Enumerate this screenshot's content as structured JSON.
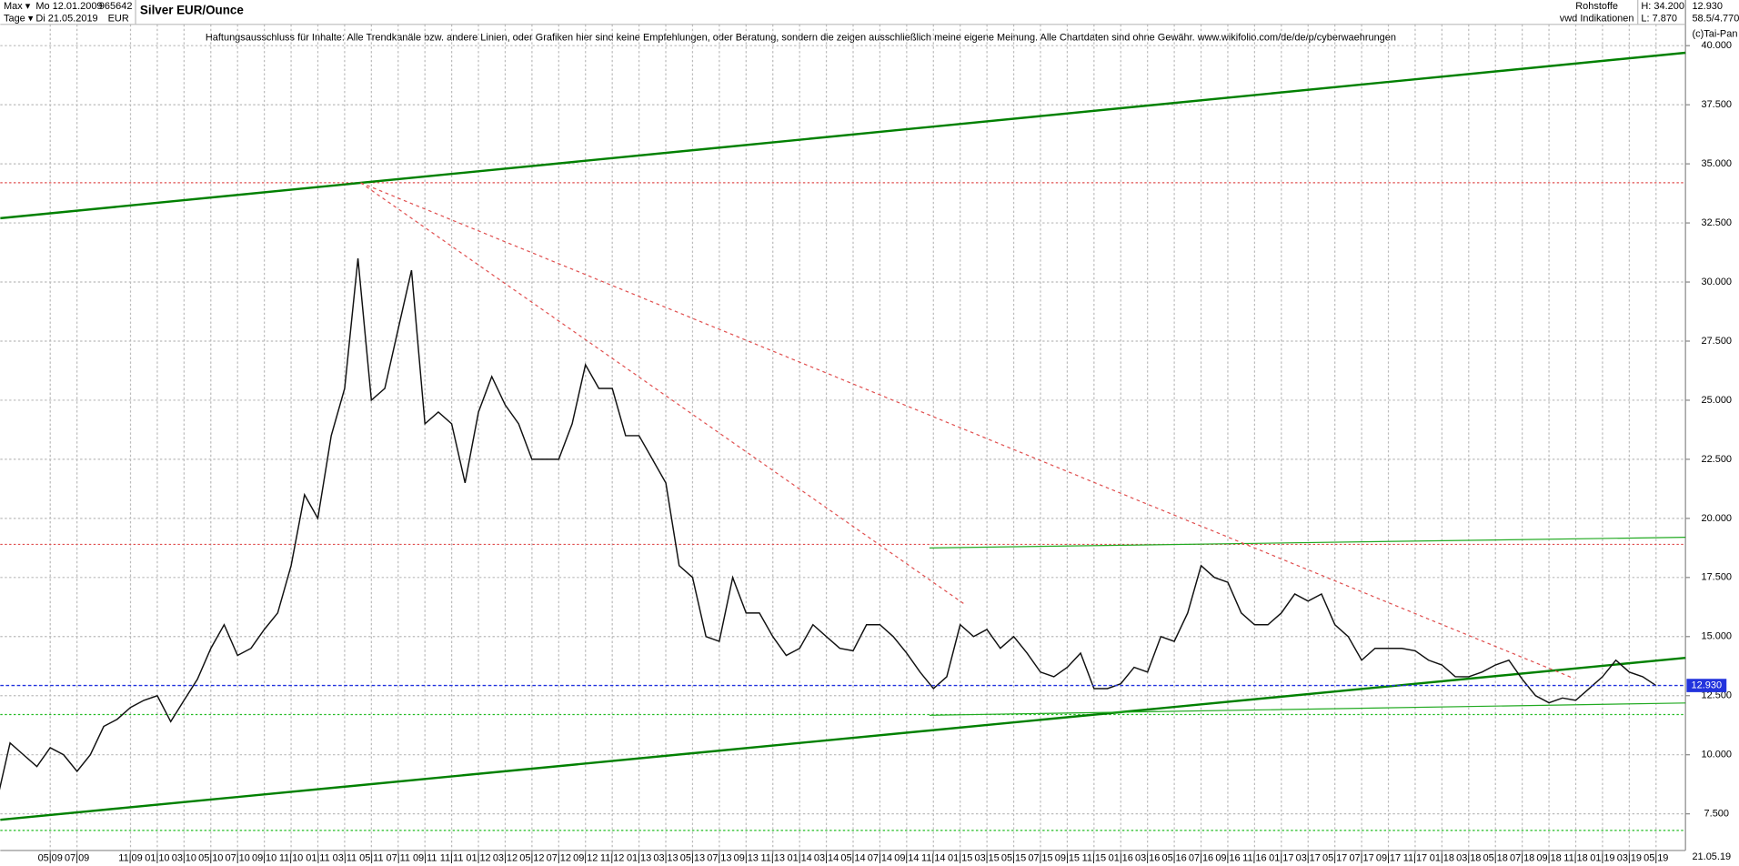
{
  "header": {
    "range": "Max ▾",
    "start": "Mo 12.01.2009",
    "code": "965642",
    "unit": "Tage ▾",
    "end": "Di 21.05.2019",
    "currency": "EUR",
    "group": "Rohstoffe",
    "source": "vwd Indikationen",
    "high": "H: 34.200",
    "low": "L: 7.870",
    "last": "12.930",
    "stats": "58.5/4.770",
    "copyright": "(c)Tai-Pan",
    "disclaimer": "Haftungsausschluss für Inhalte: Alle Trendkanäle bzw. andere Linien, oder Grafiken hier sind keine Empfehlungen, oder Beratung, sondern die zeigen ausschließlich meine eigene Meinung. Alle Chartdaten sind ohne Gewähr.  www.wikifolio.com/de/de/p/cyberwaehrungen",
    "end_date": "21.05.19"
  },
  "chart_data": {
    "type": "line",
    "title": "Silver EUR/Ounce",
    "grid": true,
    "xlim": [
      0.27,
      126.2
    ],
    "ylim": [
      5.95,
      40.9
    ],
    "yticks": [
      {
        "value": 7.5,
        "label": "7.500"
      },
      {
        "value": 10,
        "label": "10.000"
      },
      {
        "value": 12.5,
        "label": "12.500"
      },
      {
        "value": 15,
        "label": "15.000"
      },
      {
        "value": 17.5,
        "label": "17.500"
      },
      {
        "value": 20,
        "label": "20.000"
      },
      {
        "value": 22.5,
        "label": "22.500"
      },
      {
        "value": 25,
        "label": "25.000"
      },
      {
        "value": 27.5,
        "label": "27.500"
      },
      {
        "value": 30,
        "label": "30.000"
      },
      {
        "value": 32.5,
        "label": "32.500"
      },
      {
        "value": 35,
        "label": "35.000"
      },
      {
        "value": 37.5,
        "label": "37.500"
      },
      {
        "value": 40,
        "label": "40.000"
      }
    ],
    "xticks": [
      {
        "value": 4,
        "label": "05|09"
      },
      {
        "value": 6,
        "label": "07|09"
      },
      {
        "value": 10,
        "label": "11|09"
      },
      {
        "value": 12,
        "label": "01|10"
      },
      {
        "value": 14,
        "label": "03|10"
      },
      {
        "value": 16,
        "label": "05|10"
      },
      {
        "value": 18,
        "label": "07|10"
      },
      {
        "value": 20,
        "label": "09|10"
      },
      {
        "value": 22,
        "label": "11|10"
      },
      {
        "value": 24,
        "label": "01|11"
      },
      {
        "value": 26,
        "label": "03|11"
      },
      {
        "value": 28,
        "label": "05|11"
      },
      {
        "value": 30,
        "label": "07|11"
      },
      {
        "value": 32,
        "label": "09|11"
      },
      {
        "value": 34,
        "label": "11|11"
      },
      {
        "value": 36,
        "label": "01|12"
      },
      {
        "value": 38,
        "label": "03|12"
      },
      {
        "value": 40,
        "label": "05|12"
      },
      {
        "value": 42,
        "label": "07|12"
      },
      {
        "value": 44,
        "label": "09|12"
      },
      {
        "value": 46,
        "label": "11|12"
      },
      {
        "value": 48,
        "label": "01|13"
      },
      {
        "value": 50,
        "label": "03|13"
      },
      {
        "value": 52,
        "label": "05|13"
      },
      {
        "value": 54,
        "label": "07|13"
      },
      {
        "value": 56,
        "label": "09|13"
      },
      {
        "value": 58,
        "label": "11|13"
      },
      {
        "value": 60,
        "label": "01|14"
      },
      {
        "value": 62,
        "label": "03|14"
      },
      {
        "value": 64,
        "label": "05|14"
      },
      {
        "value": 66,
        "label": "07|14"
      },
      {
        "value": 68,
        "label": "09|14"
      },
      {
        "value": 70,
        "label": "11|14"
      },
      {
        "value": 72,
        "label": "01|15"
      },
      {
        "value": 74,
        "label": "03|15"
      },
      {
        "value": 76,
        "label": "05|15"
      },
      {
        "value": 78,
        "label": "07|15"
      },
      {
        "value": 80,
        "label": "09|15"
      },
      {
        "value": 82,
        "label": "11|15"
      },
      {
        "value": 84,
        "label": "01|16"
      },
      {
        "value": 86,
        "label": "03|16"
      },
      {
        "value": 88,
        "label": "05|16"
      },
      {
        "value": 90,
        "label": "07|16"
      },
      {
        "value": 92,
        "label": "09|16"
      },
      {
        "value": 94,
        "label": "11|16"
      },
      {
        "value": 96,
        "label": "01|17"
      },
      {
        "value": 98,
        "label": "03|17"
      },
      {
        "value": 100,
        "label": "05|17"
      },
      {
        "value": 102,
        "label": "07|17"
      },
      {
        "value": 104,
        "label": "09|17"
      },
      {
        "value": 106,
        "label": "11|17"
      },
      {
        "value": 108,
        "label": "01|18"
      },
      {
        "value": 110,
        "label": "03|18"
      },
      {
        "value": 112,
        "label": "05|18"
      },
      {
        "value": 114,
        "label": "07|18"
      },
      {
        "value": 116,
        "label": "09|18"
      },
      {
        "value": 118,
        "label": "11|18"
      },
      {
        "value": 120,
        "label": "01|19"
      },
      {
        "value": 122,
        "label": "03|19"
      },
      {
        "value": 124,
        "label": "05|19"
      }
    ],
    "series": [
      {
        "name": "Silver EUR/Ounce",
        "color": "#111111",
        "x": [
          0,
          1,
          2,
          3,
          4,
          5,
          6,
          7,
          8,
          9,
          10,
          11,
          12,
          13,
          14,
          15,
          16,
          17,
          18,
          19,
          20,
          21,
          22,
          23,
          24,
          25,
          26,
          27,
          28,
          29,
          30,
          31,
          32,
          33,
          34,
          35,
          36,
          37,
          38,
          39,
          40,
          41,
          42,
          43,
          44,
          45,
          46,
          47,
          48,
          49,
          50,
          51,
          52,
          53,
          54,
          55,
          56,
          57,
          58,
          59,
          60,
          61,
          62,
          63,
          64,
          65,
          66,
          67,
          68,
          69,
          70,
          71,
          72,
          73,
          74,
          75,
          76,
          77,
          78,
          79,
          80,
          81,
          82,
          83,
          84,
          85,
          86,
          87,
          88,
          89,
          90,
          91,
          92,
          93,
          94,
          95,
          96,
          97,
          98,
          99,
          100,
          101,
          102,
          103,
          104,
          105,
          106,
          107,
          108,
          109,
          110,
          111,
          112,
          113,
          114,
          115,
          116,
          117,
          118,
          119,
          120,
          121,
          122,
          123,
          124
        ],
        "values": [
          8.0,
          10.5,
          10.0,
          9.5,
          10.3,
          10.0,
          9.3,
          10.0,
          11.2,
          11.5,
          12.0,
          12.3,
          12.5,
          11.4,
          12.3,
          13.2,
          14.5,
          15.5,
          14.2,
          14.5,
          15.3,
          16.0,
          18.0,
          21.0,
          20.0,
          23.5,
          25.5,
          31.0,
          25.0,
          25.5,
          28.0,
          30.5,
          24.0,
          24.5,
          24.0,
          21.5,
          24.5,
          26.0,
          24.8,
          24.0,
          22.5,
          22.5,
          22.5,
          24.0,
          26.5,
          25.5,
          25.5,
          23.5,
          23.5,
          22.5,
          21.5,
          18.0,
          17.5,
          15.0,
          14.8,
          17.5,
          16.0,
          16.0,
          15.0,
          14.2,
          14.5,
          15.5,
          15.0,
          14.5,
          14.4,
          15.5,
          15.5,
          15.0,
          14.3,
          13.5,
          12.8,
          13.3,
          15.5,
          15.0,
          15.3,
          14.5,
          15.0,
          14.3,
          13.5,
          13.3,
          13.7,
          14.3,
          12.8,
          12.8,
          13.0,
          13.7,
          13.5,
          15.0,
          14.8,
          16.0,
          18.0,
          17.5,
          17.3,
          16.0,
          15.5,
          15.5,
          16.0,
          16.8,
          16.5,
          16.8,
          15.5,
          15.0,
          14.0,
          14.5,
          14.5,
          14.5,
          14.4,
          14.0,
          13.8,
          13.3,
          13.3,
          13.5,
          13.8,
          14.0,
          13.2,
          12.5,
          12.2,
          12.4,
          12.3,
          12.8,
          13.3,
          14.0,
          13.5,
          13.3,
          12.93
        ]
      }
    ],
    "last_price": {
      "value": 12.93,
      "label": "12.930"
    },
    "hlines": [
      {
        "value": 34.2,
        "color": "#e05050"
      },
      {
        "value": 18.9,
        "color": "#e05050"
      },
      {
        "value": 11.7,
        "color": "#22bb22"
      },
      {
        "value": 6.8,
        "color": "#22bb22"
      }
    ],
    "trendlines": [
      {
        "x": [
          0.27,
          126.2
        ],
        "y": [
          32.7,
          39.7
        ],
        "color": "#008000",
        "width": 2,
        "dashed": false
      },
      {
        "x": [
          0.27,
          126.2
        ],
        "y": [
          7.25,
          14.1
        ],
        "color": "#008000",
        "width": 2,
        "dashed": false
      },
      {
        "x": [
          69.7,
          126.2
        ],
        "y": [
          18.75,
          19.2
        ],
        "color": "#22aa22",
        "width": 1,
        "dashed": false
      },
      {
        "x": [
          69.7,
          126.2
        ],
        "y": [
          11.67,
          12.19
        ],
        "color": "#22aa22",
        "width": 1,
        "dashed": false
      },
      {
        "x": [
          27.2,
          72.35
        ],
        "y": [
          34.2,
          16.36
        ],
        "color": "#e05050",
        "width": 1,
        "dashed": true
      },
      {
        "x": [
          27.2,
          117.9
        ],
        "y": [
          34.2,
          13.22
        ],
        "color": "#e05050",
        "width": 1,
        "dashed": true
      }
    ]
  }
}
